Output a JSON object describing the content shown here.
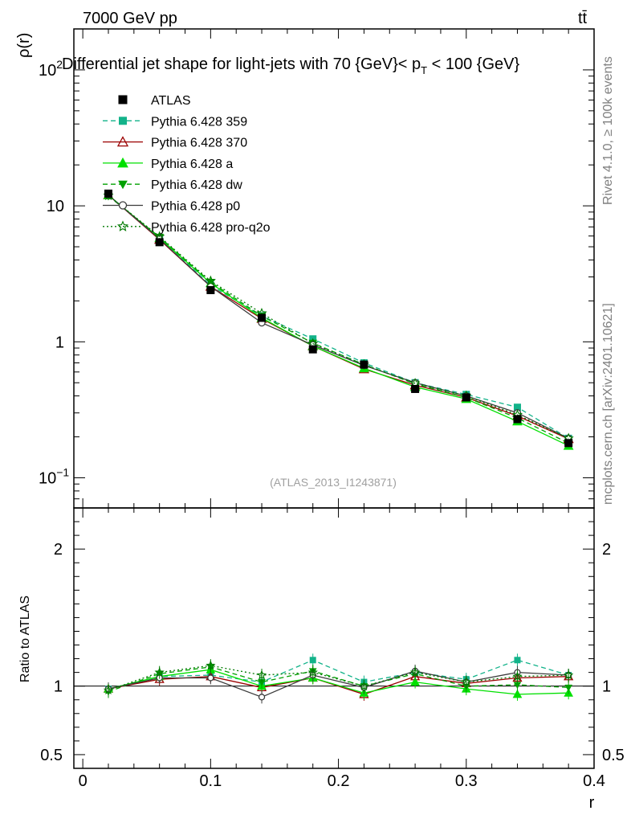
{
  "header": {
    "energy_label": "7000 GeV pp",
    "process_label": "tt̄",
    "title_main": "Differential jet shape for light-jets with 70 {GeV}< p",
    "title_sub": "T",
    "title_tail": " < 100 {GeV}",
    "watermark": "(ATLAS_2013_I1243871)",
    "side_rivet": "Rivet 4.1.0, ≥ 100k events",
    "side_site": "mcplots.cern.ch [arXiv:2401.10621]"
  },
  "chart_data": {
    "type": "line",
    "xlabel": "r",
    "xlim": [
      -0.007,
      0.4
    ],
    "x_ticks": [
      {
        "v": 0,
        "label": "0"
      },
      {
        "v": 0.1,
        "label": "0.1"
      },
      {
        "v": 0.2,
        "label": "0.2"
      },
      {
        "v": 0.3,
        "label": "0.3"
      },
      {
        "v": 0.4,
        "label": "0.4"
      }
    ],
    "main": {
      "ylabel": "ρ(r)",
      "yscale": "log",
      "ylim": [
        0.06,
        200
      ],
      "y_ticks": [
        {
          "v": 0.1,
          "base": "10",
          "exp": "−1"
        },
        {
          "v": 1,
          "base": "1",
          "exp": ""
        },
        {
          "v": 10,
          "base": "10",
          "exp": ""
        },
        {
          "v": 100,
          "base": "10",
          "exp": "2"
        }
      ]
    },
    "ratio": {
      "ylabel": "Ratio to ATLAS",
      "ylim": [
        0.4,
        2.3
      ],
      "y_ticks": [
        {
          "v": 0.5,
          "label": "0.5"
        },
        {
          "v": 1,
          "label": "1"
        },
        {
          "v": 2,
          "label": "2"
        }
      ]
    },
    "x": [
      0.02,
      0.06,
      0.1,
      0.14,
      0.18,
      0.22,
      0.26,
      0.3,
      0.34,
      0.38
    ],
    "data": {
      "name": "ATLAS",
      "values": [
        12.3,
        5.4,
        2.4,
        1.5,
        0.88,
        0.68,
        0.45,
        0.39,
        0.27,
        0.18
      ],
      "errors": [
        0.3,
        0.15,
        0.08,
        0.05,
        0.03,
        0.02,
        0.015,
        0.012,
        0.01,
        0.008
      ]
    },
    "series": [
      {
        "name": "Pythia 6.428 359",
        "color": "#13b38a",
        "dash": "6,4",
        "marker": "square",
        "values": [
          12.0,
          5.8,
          2.6,
          1.55,
          1.05,
          0.7,
          0.5,
          0.41,
          0.33,
          0.195
        ],
        "ratio": [
          0.98,
          1.07,
          1.08,
          1.03,
          1.19,
          1.03,
          1.1,
          1.05,
          1.19,
          1.08
        ]
      },
      {
        "name": "Pythia 6.428 370",
        "color": "#9b0000",
        "dash": "",
        "marker": "triangle-open",
        "values": [
          12.0,
          5.65,
          2.55,
          1.48,
          0.93,
          0.63,
          0.48,
          0.39,
          0.285,
          0.193
        ],
        "ratio": [
          0.98,
          1.05,
          1.07,
          0.99,
          1.06,
          0.94,
          1.07,
          1.02,
          1.06,
          1.07
        ]
      },
      {
        "name": "Pythia 6.428 a",
        "color": "#00e000",
        "dash": "",
        "marker": "triangle",
        "values": [
          12.0,
          5.8,
          2.7,
          1.5,
          0.93,
          0.64,
          0.465,
          0.38,
          0.26,
          0.172
        ],
        "ratio": [
          0.98,
          1.07,
          1.12,
          1.0,
          1.06,
          0.95,
          1.03,
          0.98,
          0.94,
          0.95
        ]
      },
      {
        "name": "Pythia 6.428 dw",
        "color": "#00a000",
        "dash": "6,4",
        "marker": "triangle-down",
        "values": [
          11.8,
          5.9,
          2.75,
          1.55,
          0.98,
          0.68,
          0.49,
          0.39,
          0.275,
          0.18
        ],
        "ratio": [
          0.96,
          1.09,
          1.14,
          1.03,
          1.11,
          1.0,
          1.09,
          1.0,
          1.01,
          0.99
        ]
      },
      {
        "name": "Pythia 6.428 p0",
        "color": "#3c3c3c",
        "dash": "",
        "marker": "circle-open",
        "values": [
          12.0,
          5.7,
          2.55,
          1.38,
          0.95,
          0.67,
          0.5,
          0.4,
          0.3,
          0.195
        ],
        "ratio": [
          0.98,
          1.06,
          1.06,
          0.92,
          1.08,
          0.99,
          1.11,
          1.03,
          1.1,
          1.08
        ]
      },
      {
        "name": "Pythia 6.428 pro-q2o",
        "color": "#007a00",
        "dash": "2,3",
        "marker": "star-open",
        "values": [
          11.9,
          5.95,
          2.8,
          1.62,
          0.97,
          0.68,
          0.495,
          0.4,
          0.29,
          0.195
        ],
        "ratio": [
          0.97,
          1.1,
          1.15,
          1.08,
          1.1,
          1.0,
          1.1,
          1.03,
          1.07,
          1.08
        ]
      }
    ]
  }
}
